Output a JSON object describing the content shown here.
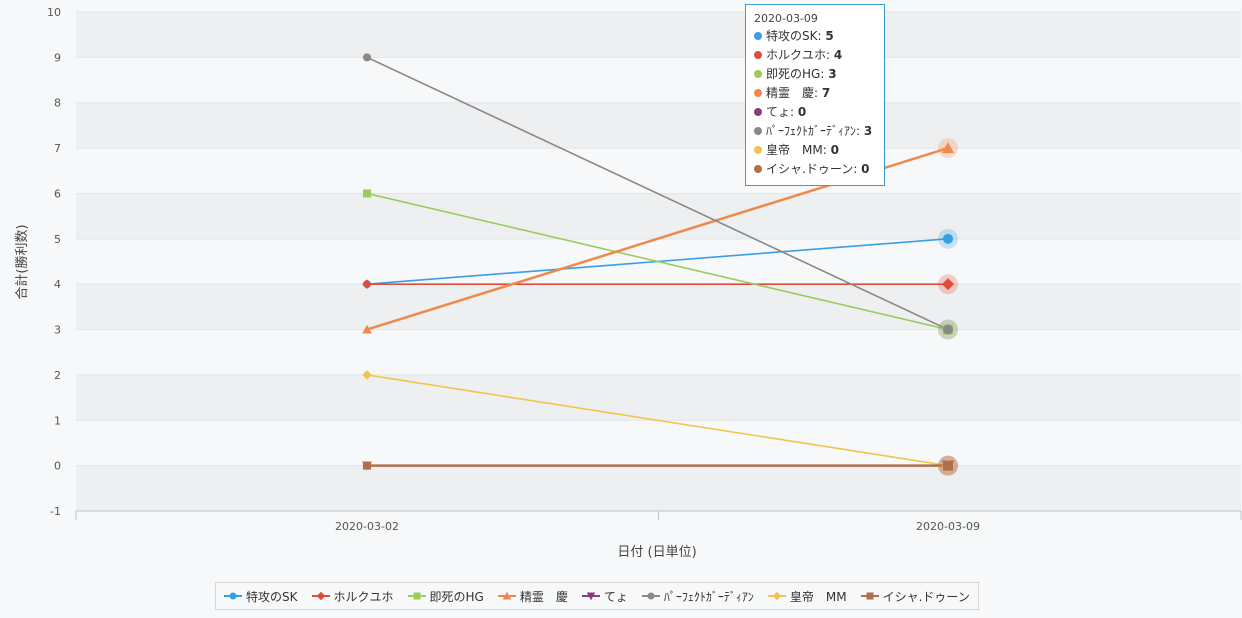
{
  "chart_data": {
    "type": "line",
    "x": [
      "2020-03-02",
      "2020-03-09"
    ],
    "series": [
      {
        "name": "特攻のSK",
        "values": [
          4,
          5
        ],
        "color": "#3a9ee4",
        "marker": "circle"
      },
      {
        "name": "ホルクユホ",
        "values": [
          4,
          4
        ],
        "color": "#e04b3a",
        "marker": "diamond"
      },
      {
        "name": "即死のHG",
        "values": [
          6,
          3
        ],
        "color": "#9acb5c",
        "marker": "square"
      },
      {
        "name": "精霊　慶",
        "values": [
          3,
          7
        ],
        "color": "#f0884a",
        "marker": "triangle"
      },
      {
        "name": "てょ",
        "values": [
          0,
          0
        ],
        "color": "#8e3a7e",
        "marker": "triangle-down"
      },
      {
        "name": "ﾊﾟｰﾌｪｸﾄｶﾞｰﾃﾞｨｱﾝ",
        "values": [
          9,
          3
        ],
        "color": "#888888",
        "marker": "circle"
      },
      {
        "name": "皇帝　MM",
        "values": [
          2,
          0
        ],
        "color": "#f2c34e",
        "marker": "diamond"
      },
      {
        "name": "イシャ.ドゥーン",
        "values": [
          0,
          0
        ],
        "color": "#b06f4a",
        "marker": "square"
      }
    ],
    "xlabel": "日付 (日単位)",
    "ylabel": "合計(勝利数)",
    "ylim": [
      -1,
      10
    ],
    "yticks": [
      -1,
      0,
      1,
      2,
      3,
      4,
      5,
      6,
      7,
      8,
      9,
      10
    ],
    "grid": true,
    "legend_position": "bottom"
  },
  "tooltip": {
    "date": "2020-03-09",
    "rows": [
      {
        "label": "特攻のSK",
        "value": "5",
        "color": "#3a9ee4"
      },
      {
        "label": "ホルクユホ",
        "value": "4",
        "color": "#e04b3a"
      },
      {
        "label": "即死のHG",
        "value": "3",
        "color": "#9acb5c"
      },
      {
        "label": "精霊　慶",
        "value": "7",
        "color": "#f0884a"
      },
      {
        "label": "てょ",
        "value": "0",
        "color": "#8e3a7e"
      },
      {
        "label": "ﾊﾟｰﾌｪｸﾄｶﾞｰﾃﾞｨｱﾝ",
        "value": "3",
        "color": "#888888"
      },
      {
        "label": "皇帝　MM",
        "value": "0",
        "color": "#f2c34e"
      },
      {
        "label": "イシャ.ドゥーン",
        "value": "0",
        "color": "#b06f4a"
      }
    ]
  }
}
